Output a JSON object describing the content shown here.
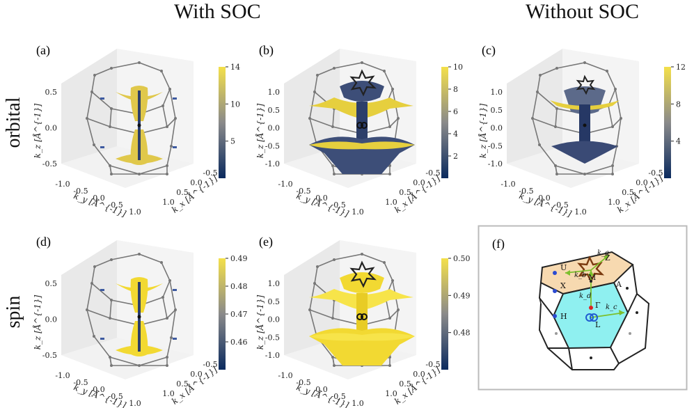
{
  "headers": {
    "with_soc": "With SOC",
    "without_soc": "Without SOC"
  },
  "row_labels": {
    "orbital": "orbital",
    "spin": "spin"
  },
  "axis_labels": {
    "kx": "k_x [Å^{-1}]",
    "ky": "k_y [Å^{-1}]",
    "kz": "k_z [Å^{-1}]"
  },
  "panels": [
    {
      "label": "(a)",
      "colorbar_ticks": [
        "14",
        "10",
        "5"
      ],
      "z_ticks": [
        "0.5",
        "0.0",
        "-0.5"
      ],
      "y_ticks": [
        "-1.0",
        "-0.5",
        "0.0",
        "0.5",
        "1.0"
      ],
      "x_ticks": [
        "-0.5",
        "0.0",
        "0.5",
        "1.0"
      ]
    },
    {
      "label": "(b)",
      "colorbar_ticks": [
        "10",
        "8",
        "6",
        "4",
        "2"
      ],
      "z_ticks": [
        "1.0",
        "0.5",
        "0.0",
        "-0.5",
        "-1.0"
      ],
      "y_ticks": [
        "-1.0",
        "-0.5",
        "0.0",
        "0.5",
        "1.0"
      ],
      "x_ticks": [
        "-0.5",
        "0.0",
        "0.5",
        "1.0"
      ]
    },
    {
      "label": "(c)",
      "colorbar_ticks": [
        "12",
        "8",
        "4"
      ],
      "z_ticks": [
        "1.0",
        "0.5",
        "0.0",
        "-0.5",
        "-1.0"
      ],
      "y_ticks": [
        "-1.0",
        "-0.5",
        "0.0",
        "0.5",
        "1.0"
      ],
      "x_ticks": [
        "-0.5",
        "0.0",
        "0.5",
        "1.0"
      ]
    },
    {
      "label": "(d)",
      "colorbar_ticks": [
        "0.49",
        "0.48",
        "0.47",
        "0.46"
      ],
      "z_ticks": [
        "0.5",
        "0.0",
        "-0.5"
      ],
      "y_ticks": [
        "-1.0",
        "-0.5",
        "0.0",
        "0.5",
        "1.0"
      ],
      "x_ticks": [
        "-0.5",
        "0.0",
        "0.5",
        "1.0"
      ]
    },
    {
      "label": "(e)",
      "colorbar_ticks": [
        "0.50",
        "0.49",
        "0.48"
      ],
      "z_ticks": [
        "1.0",
        "0.5",
        "0.0",
        "-0.5",
        "-1.0"
      ],
      "y_ticks": [
        "-1.0",
        "-0.5",
        "0.0",
        "0.5",
        "1.0"
      ],
      "x_ticks": [
        "-0.5",
        "0.0",
        "0.5",
        "1.0"
      ]
    }
  ],
  "panel_f": {
    "label": "(f)",
    "points": [
      "U",
      "X",
      "H",
      "Z",
      "M",
      "A",
      "Γ",
      "L"
    ],
    "vectors": [
      "k_a",
      "k_b",
      "k_d",
      "k_c"
    ]
  },
  "colors": {
    "colormap_low": "#0a2a5e",
    "colormap_mid": "#8a8a8a",
    "colormap_high": "#f4e04a",
    "top_face": "#f7d9b0",
    "front_face": "#8ff0f0",
    "bz_edge": "#777777",
    "arrow": "#7cbf2c"
  }
}
